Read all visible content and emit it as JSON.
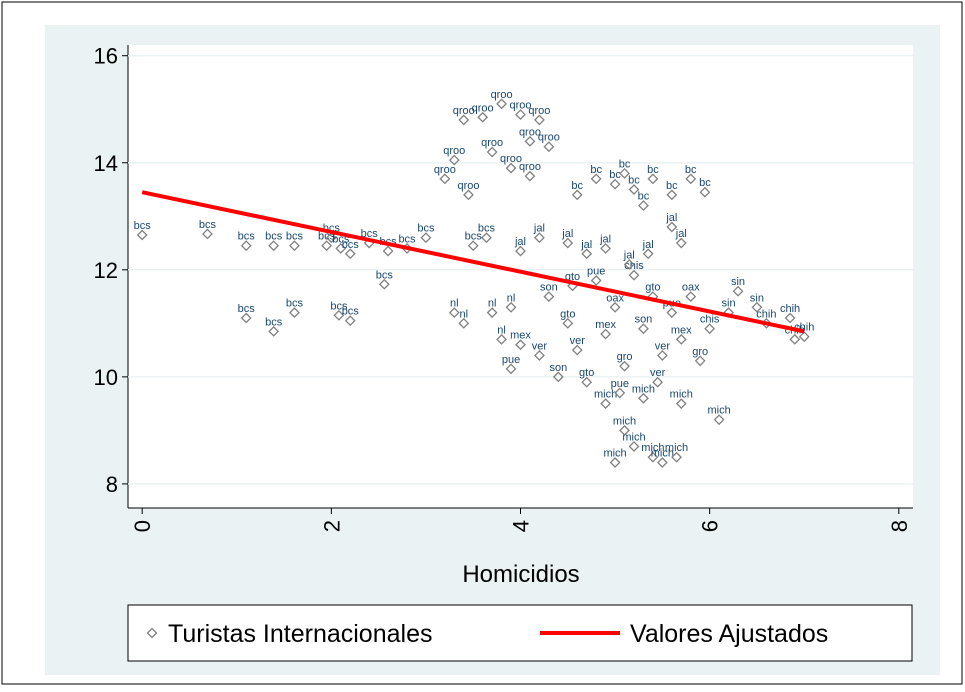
{
  "chart_data": {
    "type": "scatter",
    "x_label": "Homicidios",
    "xlim": [
      -0.15,
      8.15
    ],
    "ylim": [
      7.55,
      16.2
    ],
    "xticks": [
      0,
      2,
      4,
      6,
      8
    ],
    "yticks": [
      8,
      10,
      12,
      14,
      16
    ],
    "grid": true,
    "series": [
      {
        "name": "Turistas Internacionales",
        "color": "#808080",
        "x": [
          0,
          0.69,
          1.1,
          1.39,
          1.61,
          1.95,
          2.0,
          2.1,
          2.2,
          2.4,
          2.6,
          2.8,
          3.0,
          2.56,
          1.1,
          1.39,
          1.61,
          2.08,
          2.2,
          3.64,
          3.5,
          3.4,
          3.6,
          3.8,
          4.0,
          4.2,
          3.3,
          3.45,
          3.7,
          4.1,
          4.3,
          3.2,
          3.9,
          4.1,
          5.0,
          5.2,
          5.4,
          5.6,
          5.8,
          5.95,
          4.8,
          5.3,
          5.1,
          4.6,
          4.5,
          4.7,
          4.9,
          5.6,
          5.7,
          4.0,
          4.2,
          3.3,
          3.4,
          3.7,
          3.9,
          3.8,
          6.3,
          6.6,
          6.85,
          7.0,
          6.9,
          6.5,
          6.2,
          4.9,
          5.0,
          5.2,
          5.4,
          5.5,
          5.65,
          5.3,
          5.7,
          6.1,
          5.1,
          4.3,
          4.5,
          4.6,
          4.8,
          4.9,
          5.0,
          5.1,
          5.2,
          5.3,
          5.4,
          5.5,
          5.6,
          5.7,
          5.8,
          5.9,
          6.0,
          4.4,
          4.7,
          4.2,
          3.9,
          4.0,
          5.15,
          5.35,
          4.55,
          5.45,
          5.05
        ],
        "values": [
          12.65,
          12.67,
          12.45,
          12.45,
          12.45,
          12.45,
          12.6,
          12.4,
          12.3,
          12.5,
          12.35,
          12.4,
          12.6,
          11.73,
          11.1,
          10.85,
          11.2,
          11.15,
          11.05,
          12.6,
          12.45,
          14.8,
          14.85,
          15.1,
          14.9,
          14.8,
          14.05,
          13.4,
          14.2,
          14.4,
          14.3,
          13.7,
          13.9,
          13.75,
          13.6,
          13.5,
          13.7,
          13.4,
          13.7,
          13.45,
          13.7,
          13.2,
          13.8,
          13.4,
          12.5,
          12.3,
          12.4,
          12.8,
          12.5,
          12.35,
          12.6,
          11.2,
          11.0,
          11.2,
          11.3,
          10.7,
          11.6,
          11.0,
          11.1,
          10.75,
          10.7,
          11.3,
          11.2,
          9.5,
          8.4,
          8.7,
          8.5,
          8.4,
          8.5,
          9.6,
          9.5,
          9.2,
          9.0,
          11.5,
          11.0,
          10.5,
          11.8,
          10.8,
          11.3,
          10.2,
          11.9,
          10.9,
          11.5,
          10.4,
          11.2,
          10.7,
          11.5,
          10.3,
          10.9,
          10.0,
          9.9,
          10.4,
          10.15,
          10.6,
          12.1,
          12.3,
          11.7,
          9.9,
          9.7
        ],
        "point_labels": [
          "bcs",
          "bcs",
          "bcs",
          "bcs",
          "bcs",
          "bcs",
          "bcs",
          "bcs",
          "bcs",
          "bcs",
          "bcs",
          "bcs",
          "bcs",
          "bcs",
          "bcs",
          "bcs",
          "bcs",
          "bcs",
          "bcs",
          "bcs",
          "bcs",
          "qroo",
          "qroo",
          "qroo",
          "qroo",
          "qroo",
          "qroo",
          "qroo",
          "qroo",
          "qroo",
          "qroo",
          "qroo",
          "qroo",
          "qroo",
          "bc",
          "bc",
          "bc",
          "bc",
          "bc",
          "bc",
          "bc",
          "bc",
          "bc",
          "bc",
          "jal",
          "jal",
          "jal",
          "jal",
          "jal",
          "jal",
          "jal",
          "nl",
          "nl",
          "nl",
          "nl",
          "nl",
          "sin",
          "chih",
          "chih",
          "chih",
          "chih",
          "sin",
          "sin",
          "mich",
          "mich",
          "mich",
          "mich",
          "mich",
          "mich",
          "mich",
          "mich",
          "mich",
          "mich",
          "son",
          "gto",
          "ver",
          "pue",
          "mex",
          "oax",
          "gro",
          "chis",
          "son",
          "gto",
          "ver",
          "pue",
          "mex",
          "oax",
          "gro",
          "chis",
          "son",
          "gto",
          "ver",
          "pue",
          "mex",
          "jal",
          "jal",
          "gto",
          "ver",
          "pue"
        ]
      },
      {
        "name": "Valores Ajustados",
        "type": "line",
        "color": "#ff0000",
        "x": [
          0,
          7
        ],
        "values": [
          13.45,
          10.85
        ]
      }
    ]
  }
}
